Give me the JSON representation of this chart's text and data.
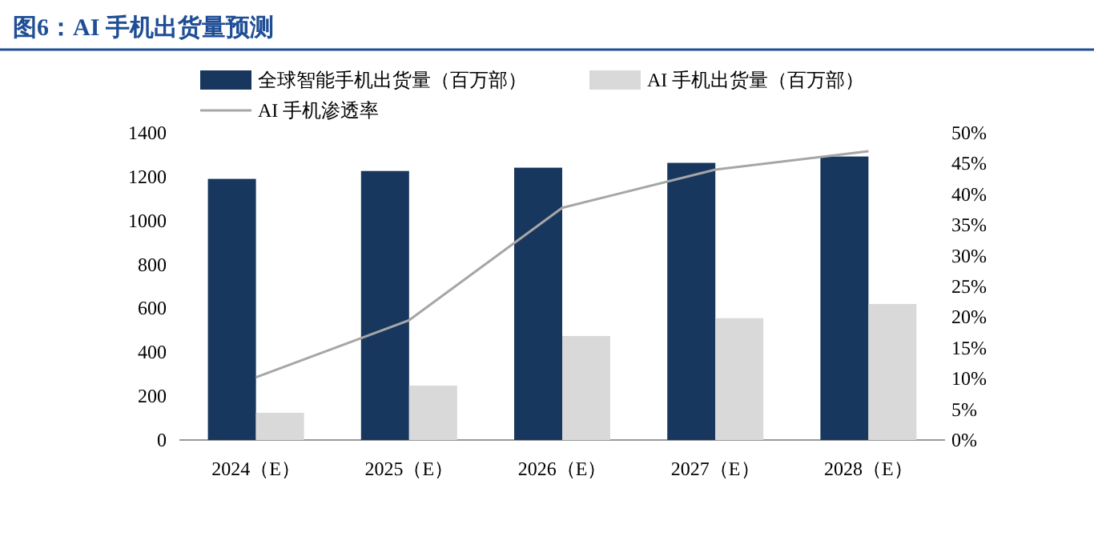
{
  "chart_data": {
    "type": "bar",
    "title": "图6：AI 手机出货量预测",
    "legend": "top",
    "grid": false,
    "categories": [
      "2024（E）",
      "2025（E）",
      "2026（E）",
      "2027（E）",
      "2028（E）"
    ],
    "series": [
      {
        "name": "全球智能手机出货量（百万部）",
        "color": "#17375e",
        "values": [
          1190,
          1226,
          1241,
          1263,
          1292
        ]
      },
      {
        "name": "AI 手机出货量（百万部）",
        "color": "#d9d9d9",
        "values": [
          124,
          248,
          474,
          555,
          620
        ]
      },
      {
        "name": "AI 手机渗透率",
        "type": "line",
        "axis": "y2",
        "color": "#a6a6a6",
        "values": [
          10.2,
          19.5,
          37.8,
          44,
          47
        ]
      }
    ],
    "ylim": [
      0,
      1400
    ],
    "yticks": [
      0,
      200,
      400,
      600,
      800,
      1000,
      1200,
      1400
    ],
    "y2lim": [
      0,
      50
    ],
    "y2ticks": [
      {
        "value": 0,
        "label": "0%"
      },
      {
        "value": 5,
        "label": "5%"
      },
      {
        "value": 10,
        "label": "10%"
      },
      {
        "value": 15,
        "label": "15%"
      },
      {
        "value": 20,
        "label": "20%"
      },
      {
        "value": 25,
        "label": "25%"
      },
      {
        "value": 30,
        "label": "30%"
      },
      {
        "value": 35,
        "label": "35%"
      },
      {
        "value": 40,
        "label": "40%"
      },
      {
        "value": 45,
        "label": "45%"
      },
      {
        "value": 50,
        "label": "50%"
      }
    ]
  }
}
